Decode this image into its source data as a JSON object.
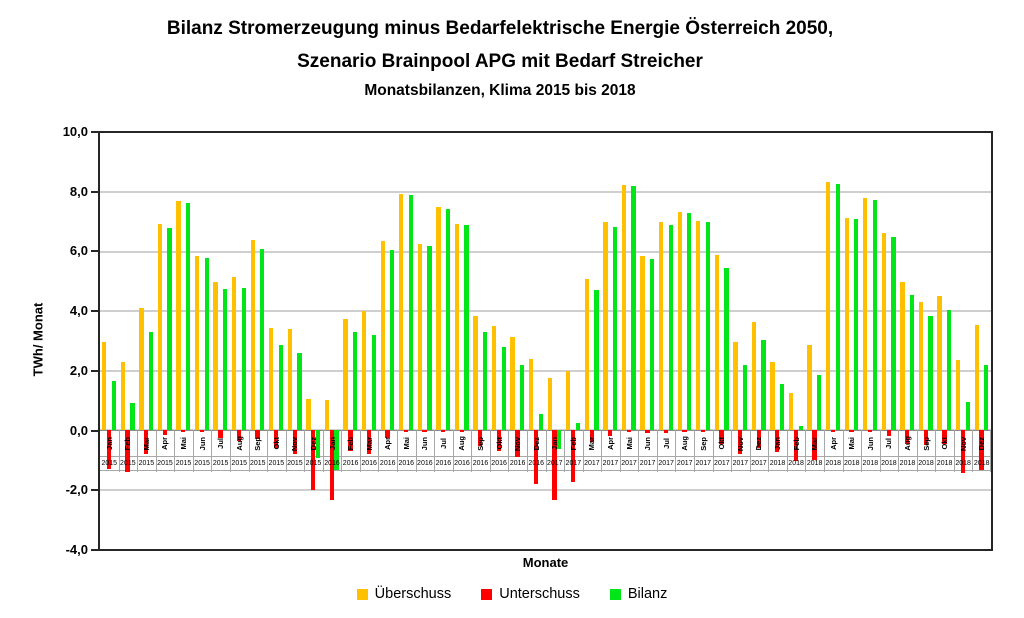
{
  "title": {
    "line1": "Bilanz Stromerzeugung minus Bedarfelektrische Energie Österreich 2050,",
    "line2": "Szenario Brainpool APG mit Bedarf Streicher",
    "line3": "Monatsbilanzen, Klima 2015 bis 2018"
  },
  "y_axis": {
    "label": "TWh/ Monat",
    "ticks": [
      "10,0",
      "8,0",
      "6,0",
      "4,0",
      "2,0",
      "0,0",
      "-2,0",
      "-4,0"
    ]
  },
  "x_axis": {
    "label": "Monate"
  },
  "legend": [
    {
      "label": "Überschuss",
      "color": "#FFC000"
    },
    {
      "label": "Unterschuss",
      "color": "#FF0000"
    },
    {
      "label": "Bilanz",
      "color": "#00E619"
    }
  ],
  "chart_data": {
    "type": "bar",
    "title": "Bilanz Stromerzeugung minus Bedarfelektrische Energie Österreich 2050, Szenario Brainpool APG mit Bedarf Streicher — Monatsbilanzen, Klima 2015 bis 2018",
    "xlabel": "Monate",
    "ylabel": "TWh/ Monat",
    "ylim": [
      -4,
      10
    ],
    "ytick_step": 2,
    "grid": "horizontal",
    "legend_position": "bottom",
    "categories": [
      {
        "month": "Jan",
        "year": "2015"
      },
      {
        "month": "Feb",
        "year": "2015"
      },
      {
        "month": "Mar",
        "year": "2015"
      },
      {
        "month": "Apr",
        "year": "2015"
      },
      {
        "month": "Mai",
        "year": "2015"
      },
      {
        "month": "Jun",
        "year": "2015"
      },
      {
        "month": "Jul",
        "year": "2015"
      },
      {
        "month": "Aug",
        "year": "2015"
      },
      {
        "month": "Sep",
        "year": "2015"
      },
      {
        "month": "Okt",
        "year": "2015"
      },
      {
        "month": "Nov",
        "year": "2015"
      },
      {
        "month": "Dez",
        "year": "2015"
      },
      {
        "month": "Jan",
        "year": "2016"
      },
      {
        "month": "Feb",
        "year": "2016"
      },
      {
        "month": "Mar",
        "year": "2016"
      },
      {
        "month": "Apr",
        "year": "2016"
      },
      {
        "month": "Mai",
        "year": "2016"
      },
      {
        "month": "Jun",
        "year": "2016"
      },
      {
        "month": "Jul",
        "year": "2016"
      },
      {
        "month": "Aug",
        "year": "2016"
      },
      {
        "month": "Sep",
        "year": "2016"
      },
      {
        "month": "Okt",
        "year": "2016"
      },
      {
        "month": "Nov",
        "year": "2016"
      },
      {
        "month": "Dez",
        "year": "2016"
      },
      {
        "month": "Jan",
        "year": "2017"
      },
      {
        "month": "Feb",
        "year": "2017"
      },
      {
        "month": "Mar",
        "year": "2017"
      },
      {
        "month": "Apr",
        "year": "2017"
      },
      {
        "month": "Mai",
        "year": "2017"
      },
      {
        "month": "Jun",
        "year": "2017"
      },
      {
        "month": "Jul",
        "year": "2017"
      },
      {
        "month": "Aug",
        "year": "2017"
      },
      {
        "month": "Sep",
        "year": "2017"
      },
      {
        "month": "Okt",
        "year": "2017"
      },
      {
        "month": "Nov",
        "year": "2017"
      },
      {
        "month": "Dez",
        "year": "2017"
      },
      {
        "month": "Jan",
        "year": "2018"
      },
      {
        "month": "Feb",
        "year": "2018"
      },
      {
        "month": "Mar",
        "year": "2018"
      },
      {
        "month": "Apr",
        "year": "2018"
      },
      {
        "month": "Mai",
        "year": "2018"
      },
      {
        "month": "Jun",
        "year": "2018"
      },
      {
        "month": "Jul",
        "year": "2018"
      },
      {
        "month": "Aug",
        "year": "2018"
      },
      {
        "month": "Sep",
        "year": "2018"
      },
      {
        "month": "Okt",
        "year": "2018"
      },
      {
        "month": "Nov",
        "year": "2018"
      },
      {
        "month": "Dez",
        "year": "2018"
      }
    ],
    "series": [
      {
        "name": "Überschuss",
        "color": "#FFC000",
        "values": [
          2.95,
          2.3,
          4.1,
          6.95,
          7.7,
          5.85,
          5.0,
          5.15,
          6.4,
          3.45,
          3.4,
          1.05,
          1.0,
          3.75,
          4.0,
          6.35,
          7.95,
          6.25,
          7.5,
          6.95,
          3.85,
          3.5,
          3.15,
          2.4,
          1.75,
          2.0,
          5.1,
          7.0,
          8.25,
          5.85,
          7.0,
          7.35,
          7.05,
          5.9,
          2.95,
          3.65,
          2.3,
          1.25,
          2.85,
          8.35,
          7.15,
          7.8,
          6.65,
          5.0,
          4.3,
          4.5,
          2.35,
          3.55
        ]
      },
      {
        "name": "Unterschuss",
        "color": "#FF0000",
        "values": [
          -1.3,
          -1.4,
          -0.8,
          -0.15,
          -0.05,
          -0.05,
          -0.25,
          -0.35,
          -0.3,
          -0.6,
          -0.8,
          -2.0,
          -2.35,
          -0.7,
          -0.8,
          -0.25,
          -0.05,
          -0.05,
          -0.05,
          -0.05,
          -0.55,
          -0.7,
          -0.9,
          -1.8,
          -2.35,
          -1.75,
          -0.4,
          -0.2,
          -0.05,
          -0.1,
          -0.1,
          -0.05,
          -0.05,
          -0.45,
          -0.8,
          -0.6,
          -0.75,
          -1.05,
          -1.0,
          -0.05,
          -0.05,
          -0.05,
          -0.2,
          -0.45,
          -0.5,
          -0.45,
          -1.45,
          -1.35
        ]
      },
      {
        "name": "Bilanz",
        "color": "#00E619",
        "values": [
          1.65,
          0.9,
          3.3,
          6.8,
          7.65,
          5.8,
          4.75,
          4.8,
          6.1,
          2.85,
          2.6,
          -0.95,
          -1.35,
          3.3,
          3.2,
          6.05,
          7.9,
          6.2,
          7.45,
          6.9,
          3.3,
          2.8,
          2.2,
          0.55,
          -0.65,
          0.25,
          4.7,
          6.85,
          8.2,
          5.75,
          6.9,
          7.3,
          7.0,
          5.45,
          2.2,
          3.05,
          1.55,
          0.15,
          1.85,
          8.3,
          7.1,
          7.75,
          6.5,
          4.55,
          3.85,
          4.05,
          0.95,
          2.2
        ]
      }
    ]
  }
}
